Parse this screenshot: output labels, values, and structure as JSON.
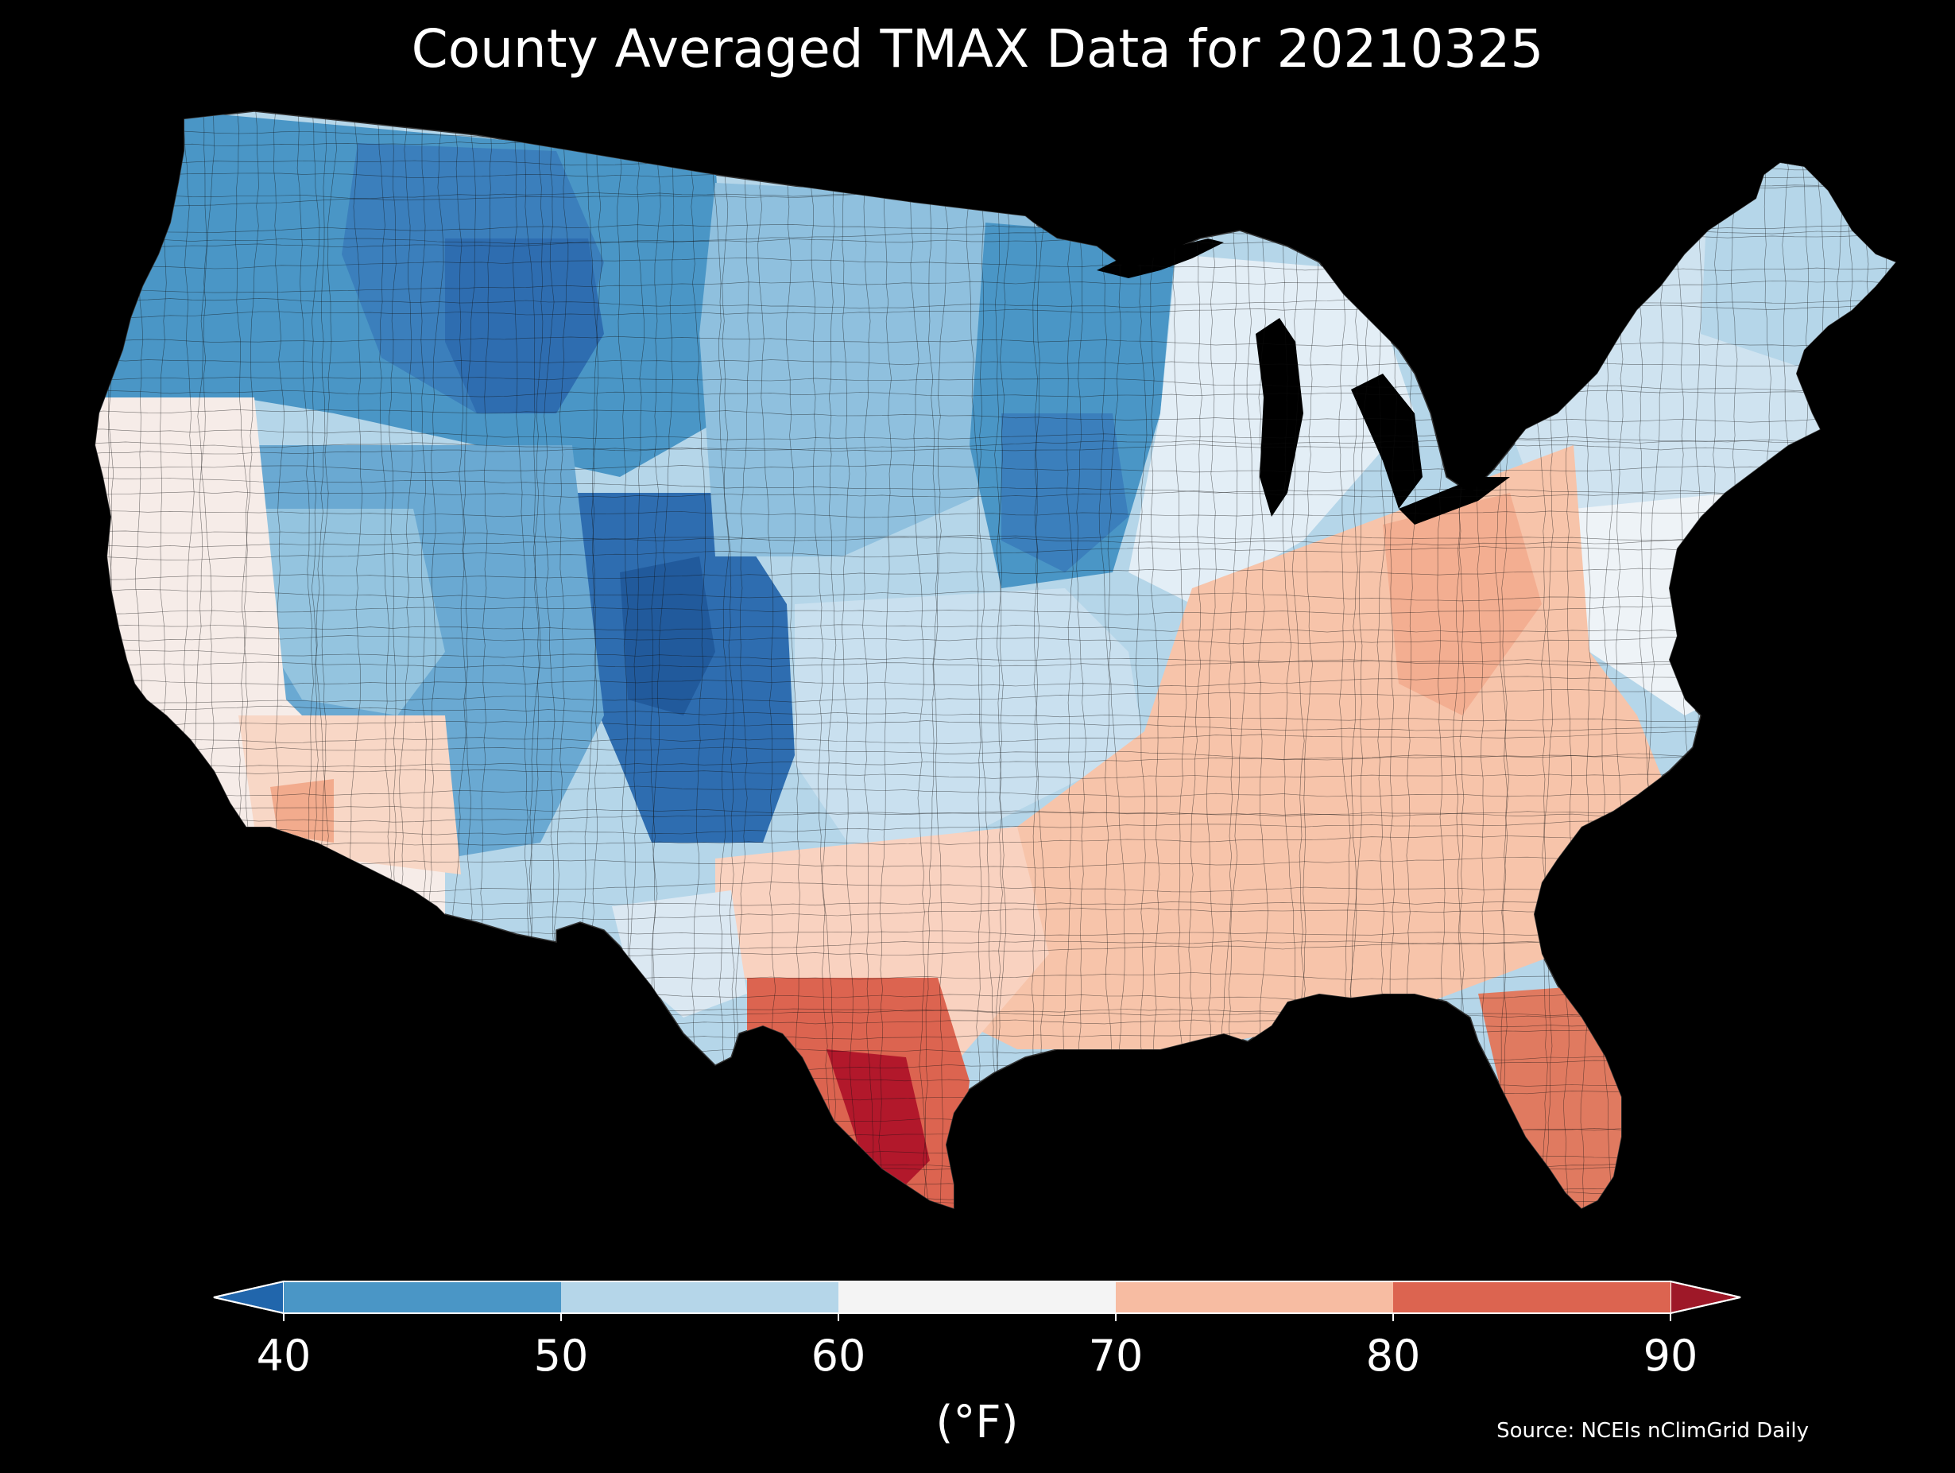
{
  "title": "County Averaged TMAX Data for 20210325",
  "source": "Source: NCEIs nClimGrid Daily",
  "map": {
    "region": "Contiguous United States",
    "fill": "county averaged maximum temperature",
    "regions_approx_value_band": [
      {
        "region": "Northern Rockies / Wyoming",
        "band": "<40 to 40-50"
      },
      {
        "region": "Colorado / New Mexico mountains",
        "band": "<40 to 40-50"
      },
      {
        "region": "Northern Plains / Upper Midwest",
        "band": "40-50 to 50-60"
      },
      {
        "region": "Great Basin / Pacific Northwest",
        "band": "40-50 to 50-60"
      },
      {
        "region": "California coast / desert Southwest",
        "band": "60-70 to 70-80"
      },
      {
        "region": "Ohio Valley / Southeast",
        "band": "70-80"
      },
      {
        "region": "Northeast",
        "band": "50-60 to 60-70"
      },
      {
        "region": "South Texas",
        "band": "80-90 to >90"
      },
      {
        "region": "Florida",
        "band": "80-90"
      }
    ]
  },
  "colorbar": {
    "unit_label": "(°F)",
    "ticks": [
      "40",
      "50",
      "60",
      "70",
      "80",
      "90"
    ],
    "tick_values": [
      40,
      50,
      60,
      70,
      80,
      90
    ],
    "bands": [
      {
        "from": 40,
        "to": 50,
        "color": "#4a96c6"
      },
      {
        "from": 50,
        "to": 60,
        "color": "#b5d6e9"
      },
      {
        "from": 60,
        "to": 70,
        "color": "#f4f4f4"
      },
      {
        "from": 70,
        "to": 80,
        "color": "#f7bca2"
      },
      {
        "from": 80,
        "to": 90,
        "color": "#dc6450"
      }
    ],
    "under_color": "#2166ac",
    "over_color": "#9e1828",
    "extend": "both"
  },
  "colors": {
    "background": "#000000",
    "text": "#ffffff",
    "county_border": "#111111"
  }
}
